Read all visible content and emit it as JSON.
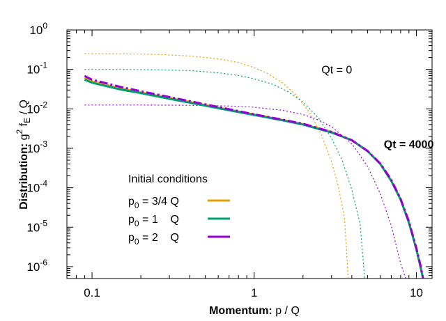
{
  "chart_data": {
    "type": "line",
    "xscale": "log",
    "yscale": "log",
    "xlim": [
      0.07,
      12.5
    ],
    "ylim": [
      5e-07,
      1
    ],
    "xlabel_bold": "Momentum:",
    "xlabel_rest": "p / Q",
    "ylabel_bold": "Distribution:",
    "ylabel_g": "g",
    "ylabel_g_exp": "2",
    "ylabel_f": " f",
    "ylabel_f_sub": "E",
    "ylabel_rest": " / Q",
    "x_ticks": [
      {
        "value": 0.1,
        "label": "0.1"
      },
      {
        "value": 1,
        "label": "1"
      },
      {
        "value": 10,
        "label": "10"
      }
    ],
    "y_ticks": [
      {
        "value": 1,
        "exp": "0"
      },
      {
        "value": 0.1,
        "exp": "-1"
      },
      {
        "value": 0.01,
        "exp": "-2"
      },
      {
        "value": 0.001,
        "exp": "-3"
      },
      {
        "value": 0.0001,
        "exp": "-4"
      },
      {
        "value": 1e-05,
        "exp": "-5"
      },
      {
        "value": 1e-06,
        "exp": "-6"
      }
    ],
    "y_tick_base": "10",
    "annotations": {
      "initial_time": {
        "text": "Qt = 0",
        "x": 2.6,
        "y": 0.1
      },
      "final_time": {
        "text": "Qt = 4000",
        "x": 6.3,
        "y": 0.0013
      }
    },
    "legend": {
      "title": "Initial conditions",
      "location": "lower-left",
      "entries": [
        {
          "p": "p",
          "sub": "0",
          "value": " = 3/4 Q"
        },
        {
          "p": "p",
          "sub": "0",
          "value": " = 1    Q"
        },
        {
          "p": "p",
          "sub": "0",
          "value": " = 2    Q"
        }
      ]
    },
    "series": [
      {
        "name": "p0 = 3/4 Q, Qt = 0",
        "color": "#e69f00",
        "style": "dotted",
        "x": [
          0.09,
          0.15,
          0.25,
          0.4,
          0.6,
          0.8,
          1.0,
          1.2,
          1.5,
          1.8,
          2.2,
          2.6,
          3.0,
          3.3,
          3.6,
          3.8
        ],
        "y": [
          0.25,
          0.248,
          0.24,
          0.22,
          0.185,
          0.15,
          0.11,
          0.08,
          0.045,
          0.023,
          0.008,
          0.0022,
          0.00045,
          0.00011,
          1.8e-05,
          5e-07
        ]
      },
      {
        "name": "p0 = 1 Q, Qt = 0",
        "color": "#009e73",
        "style": "dotted",
        "x": [
          0.09,
          0.15,
          0.25,
          0.4,
          0.6,
          0.8,
          1.0,
          1.3,
          1.6,
          2.0,
          2.5,
          3.0,
          3.5,
          4.0,
          4.5,
          4.8
        ],
        "y": [
          0.1,
          0.1,
          0.098,
          0.093,
          0.082,
          0.07,
          0.058,
          0.042,
          0.028,
          0.015,
          0.0058,
          0.0018,
          0.00048,
          9e-05,
          1.2e-05,
          5e-07
        ]
      },
      {
        "name": "p0 = 2 Q, Qt = 0",
        "color": "#9400d3",
        "style": "dotted",
        "x": [
          0.09,
          0.2,
          0.4,
          0.7,
          1.0,
          1.5,
          2.0,
          2.5,
          3.0,
          4.0,
          5.0,
          6.0,
          7.0,
          8.0,
          8.6
        ],
        "y": [
          0.0125,
          0.0125,
          0.0123,
          0.0118,
          0.011,
          0.0092,
          0.0072,
          0.0052,
          0.0035,
          0.0013,
          0.00035,
          7e-05,
          1.1e-05,
          1.2e-06,
          5e-07
        ]
      },
      {
        "name": "p0 = 3/4 Q, Qt = 4000",
        "color": "#e69f00",
        "style": "solid",
        "x": [
          0.09,
          0.1,
          0.15,
          0.2,
          0.3,
          0.5,
          0.7,
          1.0,
          1.5,
          2.0,
          3.0,
          4.0,
          5.0,
          6.0,
          7.0,
          8.0,
          9.0,
          10.0,
          10.6,
          11.0
        ],
        "y": [
          0.062,
          0.05,
          0.033,
          0.026,
          0.019,
          0.0125,
          0.0095,
          0.0072,
          0.0052,
          0.0041,
          0.0026,
          0.0016,
          0.00085,
          0.0004,
          0.00015,
          5e-05,
          1.3e-05,
          2.8e-06,
          1e-06,
          5e-07
        ]
      },
      {
        "name": "p0 = 1 Q, Qt = 4000",
        "color": "#009e73",
        "style": "solid",
        "x": [
          0.09,
          0.1,
          0.15,
          0.2,
          0.3,
          0.5,
          0.7,
          1.0,
          1.5,
          2.0,
          3.0,
          4.0,
          5.0,
          6.0,
          7.0,
          8.0,
          9.0,
          10.0,
          10.6,
          11.0
        ],
        "y": [
          0.055,
          0.046,
          0.031,
          0.025,
          0.018,
          0.012,
          0.0092,
          0.007,
          0.0051,
          0.004,
          0.0025,
          0.0016,
          0.00085,
          0.0004,
          0.00015,
          5e-05,
          1.3e-05,
          2.8e-06,
          1e-06,
          5e-07
        ]
      },
      {
        "name": "p0 = 2 Q, Qt = 4000",
        "color": "#9400d3",
        "style": "dashdot",
        "x": [
          0.09,
          0.1,
          0.15,
          0.2,
          0.3,
          0.5,
          0.7,
          1.0,
          1.5,
          2.0,
          3.0,
          4.0,
          5.0,
          6.0,
          7.0,
          8.0,
          9.0,
          10.0,
          10.6,
          11.0
        ],
        "y": [
          0.068,
          0.055,
          0.036,
          0.028,
          0.02,
          0.013,
          0.0098,
          0.0073,
          0.0053,
          0.0042,
          0.0026,
          0.0016,
          0.00086,
          0.00041,
          0.00016,
          5.2e-05,
          1.4e-05,
          3e-06,
          1.1e-06,
          5e-07
        ]
      }
    ]
  }
}
